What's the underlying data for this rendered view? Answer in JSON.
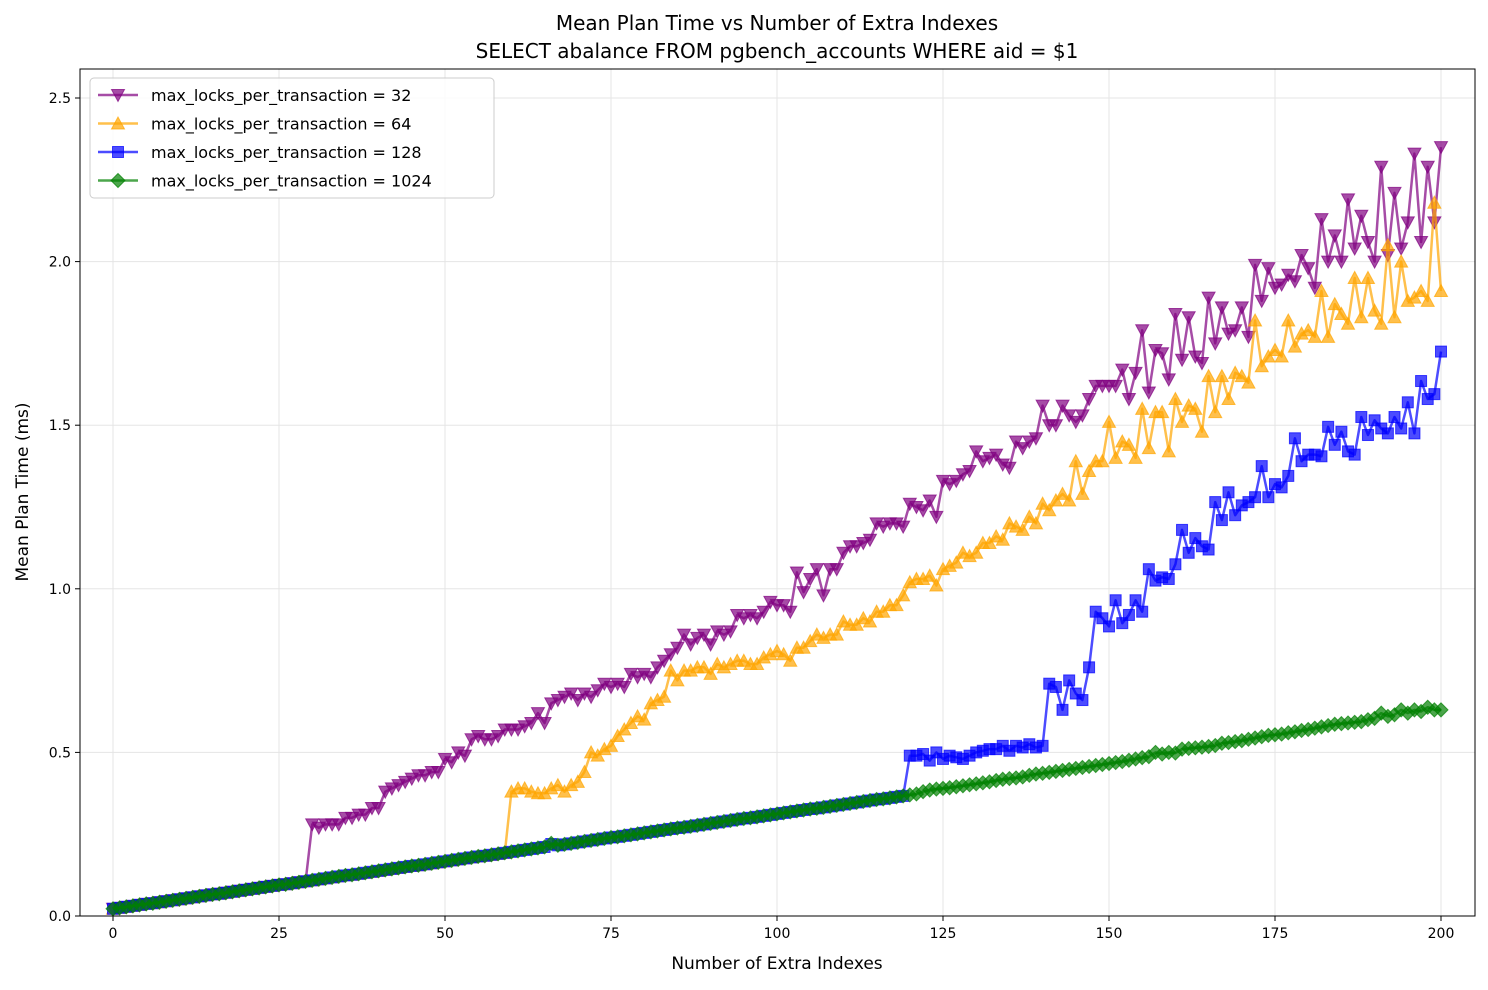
{
  "chart_data": {
    "type": "line",
    "title": "Mean Plan Time vs Number of Extra Indexes",
    "subtitle": "SELECT abalance FROM pgbench_accounts WHERE aid = $1",
    "xlabel": "Number of Extra Indexes",
    "ylabel": "Mean Plan Time (ms)",
    "xlim": [
      -5,
      205
    ],
    "ylim": [
      0,
      2.6
    ],
    "xticks": [
      0,
      25,
      50,
      75,
      100,
      125,
      150,
      175,
      200
    ],
    "yticks": [
      0.0,
      0.5,
      1.0,
      1.5,
      2.0,
      2.5
    ],
    "ytick_labels": [
      "0.0",
      "0.5",
      "1.0",
      "1.5",
      "2.0",
      "2.5"
    ],
    "grid": true,
    "legend_position": "top-left",
    "x": "0..200 step 1",
    "series": [
      {
        "name": "max_locks_per_transaction = 32",
        "color": "#800080",
        "marker": "triangle-down",
        "values": [
          0.022,
          0.025,
          0.028,
          0.031,
          0.034,
          0.037,
          0.039,
          0.042,
          0.045,
          0.048,
          0.051,
          0.054,
          0.057,
          0.06,
          0.063,
          0.066,
          0.068,
          0.071,
          0.074,
          0.077,
          0.08,
          0.083,
          0.086,
          0.089,
          0.092,
          0.095,
          0.097,
          0.1,
          0.103,
          0.106,
          0.28,
          0.27,
          0.28,
          0.28,
          0.28,
          0.3,
          0.3,
          0.31,
          0.31,
          0.33,
          0.33,
          0.38,
          0.39,
          0.4,
          0.41,
          0.42,
          0.43,
          0.43,
          0.44,
          0.44,
          0.48,
          0.47,
          0.5,
          0.49,
          0.54,
          0.55,
          0.54,
          0.54,
          0.55,
          0.57,
          0.57,
          0.57,
          0.58,
          0.59,
          0.62,
          0.59,
          0.65,
          0.66,
          0.67,
          0.68,
          0.66,
          0.68,
          0.67,
          0.69,
          0.71,
          0.7,
          0.71,
          0.7,
          0.74,
          0.73,
          0.74,
          0.73,
          0.76,
          0.78,
          0.8,
          0.82,
          0.86,
          0.83,
          0.85,
          0.86,
          0.83,
          0.87,
          0.86,
          0.87,
          0.92,
          0.91,
          0.92,
          0.91,
          0.93,
          0.96,
          0.95,
          0.95,
          0.93,
          1.05,
          0.99,
          1.03,
          1.06,
          0.98,
          1.06,
          1.06,
          1.11,
          1.13,
          1.13,
          1.14,
          1.15,
          1.2,
          1.19,
          1.2,
          1.2,
          1.19,
          1.26,
          1.25,
          1.24,
          1.27,
          1.22,
          1.33,
          1.32,
          1.33,
          1.35,
          1.36,
          1.42,
          1.39,
          1.4,
          1.41,
          1.38,
          1.37,
          1.45,
          1.43,
          1.45,
          1.46,
          1.56,
          1.5,
          1.5,
          1.56,
          1.53,
          1.51,
          1.53,
          1.58,
          1.62,
          1.62,
          1.62,
          1.62,
          1.67,
          1.58,
          1.66,
          1.79,
          1.6,
          1.73,
          1.72,
          1.64,
          1.84,
          1.7,
          1.83,
          1.71,
          1.69,
          1.89,
          1.75,
          1.86,
          1.78,
          1.79,
          1.86,
          1.77,
          1.99,
          1.88,
          1.98,
          1.92,
          1.93,
          1.96,
          1.94,
          2.02,
          1.98,
          1.92,
          2.13,
          2.0,
          2.08,
          2.0,
          2.19,
          2.04,
          2.14,
          2.06,
          2.0,
          2.29,
          2.02,
          2.21,
          2.04,
          2.12,
          2.33,
          2.06,
          2.29,
          2.12,
          2.35
        ]
      },
      {
        "name": "max_locks_per_transaction = 64",
        "color": "#FFA500",
        "marker": "triangle-up",
        "values": [
          0.022,
          0.025,
          0.028,
          0.031,
          0.034,
          0.037,
          0.039,
          0.042,
          0.045,
          0.048,
          0.051,
          0.054,
          0.057,
          0.06,
          0.063,
          0.066,
          0.068,
          0.071,
          0.074,
          0.077,
          0.08,
          0.083,
          0.086,
          0.089,
          0.092,
          0.095,
          0.097,
          0.1,
          0.103,
          0.106,
          0.109,
          0.112,
          0.115,
          0.118,
          0.121,
          0.124,
          0.126,
          0.129,
          0.132,
          0.135,
          0.138,
          0.141,
          0.144,
          0.147,
          0.15,
          0.153,
          0.155,
          0.158,
          0.161,
          0.164,
          0.167,
          0.17,
          0.173,
          0.176,
          0.179,
          0.182,
          0.184,
          0.187,
          0.19,
          0.193,
          0.38,
          0.39,
          0.39,
          0.38,
          0.375,
          0.375,
          0.39,
          0.4,
          0.38,
          0.4,
          0.41,
          0.44,
          0.5,
          0.49,
          0.51,
          0.52,
          0.55,
          0.57,
          0.59,
          0.61,
          0.6,
          0.65,
          0.66,
          0.67,
          0.75,
          0.72,
          0.75,
          0.75,
          0.76,
          0.76,
          0.74,
          0.77,
          0.76,
          0.77,
          0.78,
          0.78,
          0.77,
          0.77,
          0.79,
          0.8,
          0.81,
          0.8,
          0.78,
          0.82,
          0.82,
          0.84,
          0.86,
          0.85,
          0.86,
          0.86,
          0.9,
          0.89,
          0.89,
          0.91,
          0.9,
          0.93,
          0.93,
          0.95,
          0.95,
          0.98,
          1.02,
          1.03,
          1.03,
          1.04,
          1.01,
          1.06,
          1.07,
          1.08,
          1.11,
          1.1,
          1.11,
          1.14,
          1.14,
          1.16,
          1.15,
          1.2,
          1.19,
          1.18,
          1.22,
          1.2,
          1.26,
          1.24,
          1.27,
          1.29,
          1.27,
          1.39,
          1.29,
          1.36,
          1.39,
          1.39,
          1.51,
          1.4,
          1.45,
          1.44,
          1.4,
          1.55,
          1.43,
          1.54,
          1.54,
          1.42,
          1.58,
          1.51,
          1.56,
          1.55,
          1.48,
          1.65,
          1.54,
          1.65,
          1.58,
          1.66,
          1.65,
          1.63,
          1.82,
          1.68,
          1.71,
          1.73,
          1.71,
          1.82,
          1.74,
          1.78,
          1.79,
          1.77,
          1.91,
          1.77,
          1.87,
          1.84,
          1.81,
          1.95,
          1.83,
          1.95,
          1.85,
          1.81,
          2.05,
          1.83,
          2.0,
          1.88,
          1.89,
          1.91,
          1.88,
          2.18,
          1.91
        ]
      },
      {
        "name": "max_locks_per_transaction = 128",
        "color": "#0000FF",
        "marker": "square",
        "values": [
          0.022,
          0.025,
          0.028,
          0.031,
          0.034,
          0.037,
          0.039,
          0.042,
          0.045,
          0.048,
          0.051,
          0.054,
          0.057,
          0.06,
          0.063,
          0.066,
          0.068,
          0.071,
          0.074,
          0.077,
          0.08,
          0.083,
          0.086,
          0.089,
          0.092,
          0.095,
          0.097,
          0.1,
          0.103,
          0.106,
          0.109,
          0.112,
          0.115,
          0.118,
          0.121,
          0.124,
          0.126,
          0.129,
          0.132,
          0.135,
          0.138,
          0.141,
          0.144,
          0.147,
          0.15,
          0.153,
          0.155,
          0.158,
          0.161,
          0.164,
          0.167,
          0.17,
          0.173,
          0.176,
          0.179,
          0.182,
          0.184,
          0.187,
          0.19,
          0.193,
          0.196,
          0.199,
          0.202,
          0.205,
          0.208,
          0.211,
          0.22,
          0.216,
          0.219,
          0.222,
          0.225,
          0.228,
          0.231,
          0.234,
          0.237,
          0.24,
          0.242,
          0.245,
          0.248,
          0.251,
          0.254,
          0.257,
          0.26,
          0.263,
          0.266,
          0.269,
          0.271,
          0.274,
          0.277,
          0.28,
          0.283,
          0.286,
          0.289,
          0.292,
          0.295,
          0.298,
          0.3,
          0.303,
          0.306,
          0.309,
          0.312,
          0.315,
          0.318,
          0.321,
          0.324,
          0.327,
          0.329,
          0.332,
          0.335,
          0.338,
          0.341,
          0.344,
          0.347,
          0.35,
          0.353,
          0.356,
          0.358,
          0.361,
          0.364,
          0.367,
          0.49,
          0.49,
          0.495,
          0.475,
          0.5,
          0.48,
          0.49,
          0.485,
          0.48,
          0.49,
          0.5,
          0.505,
          0.51,
          0.51,
          0.52,
          0.505,
          0.52,
          0.515,
          0.525,
          0.515,
          0.52,
          0.71,
          0.7,
          0.63,
          0.72,
          0.68,
          0.66,
          0.76,
          0.93,
          0.91,
          0.885,
          0.965,
          0.895,
          0.92,
          0.965,
          0.93,
          1.06,
          1.025,
          1.035,
          1.03,
          1.075,
          1.18,
          1.11,
          1.155,
          1.13,
          1.12,
          1.265,
          1.21,
          1.295,
          1.225,
          1.255,
          1.265,
          1.28,
          1.375,
          1.28,
          1.32,
          1.31,
          1.345,
          1.46,
          1.39,
          1.41,
          1.41,
          1.405,
          1.495,
          1.44,
          1.48,
          1.42,
          1.41,
          1.525,
          1.47,
          1.515,
          1.49,
          1.475,
          1.525,
          1.49,
          1.57,
          1.475,
          1.635,
          1.58,
          1.595,
          1.725
        ]
      },
      {
        "name": "max_locks_per_transaction = 1024",
        "color": "#008000",
        "marker": "diamond",
        "values": [
          0.022,
          0.025,
          0.028,
          0.031,
          0.034,
          0.037,
          0.039,
          0.042,
          0.045,
          0.048,
          0.051,
          0.054,
          0.057,
          0.06,
          0.063,
          0.066,
          0.068,
          0.071,
          0.074,
          0.077,
          0.08,
          0.083,
          0.086,
          0.089,
          0.092,
          0.095,
          0.097,
          0.1,
          0.103,
          0.106,
          0.109,
          0.112,
          0.115,
          0.118,
          0.121,
          0.124,
          0.126,
          0.129,
          0.132,
          0.135,
          0.138,
          0.141,
          0.144,
          0.147,
          0.15,
          0.153,
          0.155,
          0.158,
          0.161,
          0.164,
          0.167,
          0.17,
          0.173,
          0.176,
          0.179,
          0.182,
          0.184,
          0.187,
          0.19,
          0.193,
          0.196,
          0.199,
          0.202,
          0.205,
          0.208,
          0.211,
          0.222,
          0.216,
          0.219,
          0.222,
          0.225,
          0.228,
          0.231,
          0.234,
          0.237,
          0.24,
          0.242,
          0.245,
          0.248,
          0.251,
          0.254,
          0.257,
          0.26,
          0.263,
          0.266,
          0.269,
          0.271,
          0.274,
          0.277,
          0.28,
          0.283,
          0.286,
          0.289,
          0.292,
          0.295,
          0.298,
          0.3,
          0.303,
          0.306,
          0.309,
          0.312,
          0.315,
          0.318,
          0.321,
          0.324,
          0.327,
          0.329,
          0.332,
          0.335,
          0.338,
          0.341,
          0.344,
          0.347,
          0.35,
          0.353,
          0.356,
          0.358,
          0.361,
          0.364,
          0.367,
          0.37,
          0.373,
          0.38,
          0.385,
          0.388,
          0.39,
          0.392,
          0.395,
          0.398,
          0.401,
          0.404,
          0.407,
          0.41,
          0.414,
          0.418,
          0.42,
          0.422,
          0.425,
          0.43,
          0.434,
          0.436,
          0.439,
          0.442,
          0.445,
          0.448,
          0.451,
          0.454,
          0.457,
          0.46,
          0.463,
          0.466,
          0.469,
          0.472,
          0.476,
          0.48,
          0.484,
          0.487,
          0.5,
          0.495,
          0.5,
          0.498,
          0.51,
          0.512,
          0.514,
          0.516,
          0.518,
          0.521,
          0.528,
          0.53,
          0.533,
          0.536,
          0.54,
          0.544,
          0.548,
          0.552,
          0.554,
          0.556,
          0.56,
          0.563,
          0.567,
          0.57,
          0.574,
          0.578,
          0.582,
          0.586,
          0.588,
          0.59,
          0.592,
          0.594,
          0.6,
          0.604,
          0.62,
          0.61,
          0.615,
          0.63,
          0.62,
          0.63,
          0.625,
          0.638,
          0.63,
          0.63
        ]
      }
    ]
  }
}
